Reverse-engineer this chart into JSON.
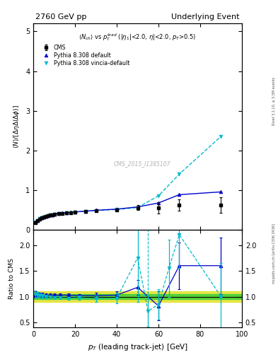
{
  "title_left": "2760 GeV pp",
  "title_right": "Underlying Event",
  "ylabel_main": "$\\langle N\\rangle/[\\Delta\\eta\\Delta(\\Delta\\phi)]$",
  "ylabel_ratio": "Ratio to CMS",
  "xlabel": "$p_T$ (leading track-jet) [GeV]",
  "watermark": "CMS_2015_I1385107",
  "right_label_top": "Rivet 3.1.10, ≥ 3.5M events",
  "right_label_bot": "mcplots.cern.ch [arXiv:1306.3436]",
  "cms_x": [
    1.0,
    2.0,
    3.0,
    4.0,
    5.0,
    6.0,
    7.0,
    8.0,
    9.0,
    10.0,
    12.0,
    14.0,
    16.0,
    18.0,
    20.0,
    25.0,
    30.0,
    40.0,
    50.0,
    60.0,
    70.0,
    90.0
  ],
  "cms_y": [
    0.18,
    0.22,
    0.26,
    0.29,
    0.31,
    0.33,
    0.35,
    0.36,
    0.37,
    0.38,
    0.4,
    0.41,
    0.42,
    0.43,
    0.44,
    0.46,
    0.48,
    0.5,
    0.55,
    0.55,
    0.62,
    0.62
  ],
  "cms_yerr": [
    0.015,
    0.015,
    0.012,
    0.01,
    0.01,
    0.01,
    0.01,
    0.01,
    0.01,
    0.01,
    0.01,
    0.01,
    0.01,
    0.01,
    0.01,
    0.015,
    0.018,
    0.025,
    0.06,
    0.14,
    0.14,
    0.2
  ],
  "py_def_x": [
    1.0,
    2.0,
    3.0,
    4.0,
    5.0,
    6.0,
    7.0,
    8.0,
    9.0,
    10.0,
    12.0,
    14.0,
    16.0,
    18.0,
    20.0,
    25.0,
    30.0,
    40.0,
    50.0,
    60.0,
    70.0,
    90.0
  ],
  "py_def_y": [
    0.19,
    0.23,
    0.27,
    0.3,
    0.32,
    0.34,
    0.355,
    0.365,
    0.375,
    0.385,
    0.405,
    0.415,
    0.425,
    0.435,
    0.445,
    0.465,
    0.485,
    0.515,
    0.57,
    0.67,
    0.88,
    0.95
  ],
  "py_vin_x": [
    1.0,
    2.0,
    3.0,
    4.0,
    5.0,
    6.0,
    7.0,
    8.0,
    9.0,
    10.0,
    12.0,
    14.0,
    16.0,
    18.0,
    20.0,
    25.0,
    30.0,
    40.0,
    50.0,
    60.0,
    70.0,
    90.0
  ],
  "py_vin_y": [
    0.19,
    0.23,
    0.27,
    0.3,
    0.32,
    0.335,
    0.35,
    0.36,
    0.37,
    0.38,
    0.4,
    0.41,
    0.42,
    0.43,
    0.44,
    0.46,
    0.48,
    0.505,
    0.555,
    0.85,
    1.4,
    2.35
  ],
  "ratio_py_def_x": [
    1.0,
    2.0,
    3.0,
    4.5,
    6.0,
    8.0,
    10.0,
    13.0,
    17.0,
    22.0,
    30.0,
    40.0,
    50.0,
    60.0,
    70.0,
    90.0
  ],
  "ratio_py_def_y": [
    1.04,
    1.04,
    1.03,
    1.03,
    1.03,
    1.03,
    1.03,
    1.03,
    1.03,
    1.02,
    1.02,
    1.03,
    1.18,
    0.82,
    1.6,
    1.6
  ],
  "ratio_py_def_yerr": [
    0.06,
    0.05,
    0.04,
    0.04,
    0.03,
    0.03,
    0.03,
    0.03,
    0.03,
    0.03,
    0.05,
    0.07,
    0.14,
    0.28,
    0.45,
    0.55
  ],
  "ratio_py_vin_x": [
    1.0,
    2.0,
    3.0,
    4.5,
    6.0,
    8.0,
    10.0,
    13.0,
    17.0,
    22.0,
    30.0,
    40.0,
    50.0,
    55.0,
    60.0,
    65.0,
    70.0,
    90.0
  ],
  "ratio_py_vin_y": [
    1.05,
    1.04,
    1.02,
    1.01,
    1.0,
    0.99,
    0.98,
    0.98,
    0.97,
    0.98,
    0.96,
    0.97,
    1.75,
    0.72,
    0.85,
    1.55,
    2.2,
    1.0
  ],
  "ratio_py_vin_yerr": [
    0.07,
    0.05,
    0.04,
    0.04,
    0.03,
    0.03,
    0.03,
    0.03,
    0.03,
    0.04,
    0.06,
    0.1,
    0.85,
    0.3,
    0.3,
    0.55,
    0.65,
    0.65
  ],
  "color_cms": "#000000",
  "color_py_def": "#0000cc",
  "color_py_vin": "#00bbcc",
  "color_band_green": "#33cc33",
  "color_band_yellow": "#dddd00",
  "band_inner": 0.05,
  "band_outer": 0.1,
  "xlim": [
    0,
    100
  ],
  "ylim_main": [
    0.0,
    5.2
  ],
  "ylim_ratio": [
    0.4,
    2.3
  ],
  "yticks_main": [
    0,
    1,
    2,
    3,
    4,
    5
  ],
  "yticks_ratio": [
    0.5,
    1.0,
    1.5,
    2.0
  ],
  "vline_x": 55.0
}
